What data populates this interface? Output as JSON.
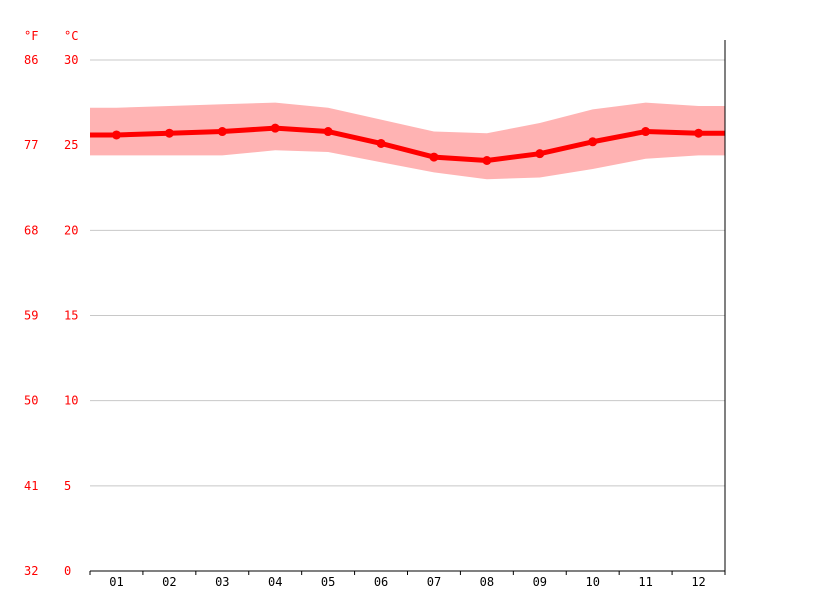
{
  "chart_data": {
    "type": "line",
    "units": {
      "fahrenheit": "°F",
      "celsius": "°C"
    },
    "categories": [
      "01",
      "02",
      "03",
      "04",
      "05",
      "06",
      "07",
      "08",
      "09",
      "10",
      "11",
      "12"
    ],
    "series": [
      {
        "values": [
          25.6,
          25.7,
          25.8,
          26.0,
          25.8,
          25.1,
          24.3,
          24.1,
          24.5,
          25.2,
          25.8,
          25.7
        ]
      }
    ],
    "range_band": {
      "upper": [
        27.2,
        27.3,
        27.4,
        27.5,
        27.2,
        26.5,
        25.8,
        25.7,
        26.3,
        27.1,
        27.5,
        27.3
      ],
      "lower": [
        24.4,
        24.4,
        24.4,
        24.7,
        24.6,
        24.0,
        23.4,
        23.0,
        23.1,
        23.6,
        24.2,
        24.4
      ]
    },
    "ylim": [
      0,
      30
    ],
    "yticks_celsius": [
      "0",
      "5",
      "10",
      "15",
      "20",
      "25",
      "30"
    ],
    "yticks_fahrenheit": [
      "32",
      "41",
      "50",
      "59",
      "68",
      "77",
      "86"
    ],
    "grid": true,
    "colors": {
      "line": "#ff0000",
      "band": "#ffb3b3",
      "grid": "#c8c8c8",
      "axis_labels": "#ff0000",
      "month_labels": "#000000"
    }
  }
}
